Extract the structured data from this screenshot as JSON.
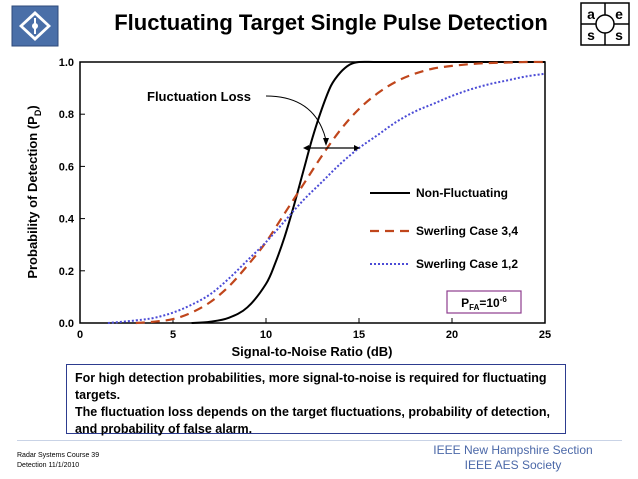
{
  "slide": {
    "title": "Fluctuating Target Single Pulse Detection",
    "footer_left": [
      "Radar Systems Course    39",
      "Detection  11/1/2010"
    ],
    "footer_right": [
      "IEEE New Hampshire Section",
      "IEEE AES Society"
    ],
    "callout": [
      "For high detection probabilities, more signal-to-noise is required for fluctuating targets.",
      "The fluctuation loss depends on the target fluctuations, probability of detection, and probability of false alarm."
    ],
    "logo_right_letters": [
      "a",
      "e",
      "s",
      "s"
    ]
  },
  "colors": {
    "non_fluctuating": "#000000",
    "swerling_34": "#c0461c",
    "swerling_12": "#4b4bd6",
    "callout_border": "#2d3c8f",
    "footer_text": "#4b68a8"
  },
  "chart_data": {
    "type": "line",
    "title": "Fluctuating Target Single Pulse Detection",
    "xlabel": "Signal-to-Noise Ratio (dB)",
    "ylabel": "Probability of Detection (P",
    "ylabel_sub": "D",
    "ylabel_close": ")",
    "xlim": [
      0,
      25
    ],
    "ylim": [
      0,
      1
    ],
    "xticks": [
      0,
      5,
      10,
      15,
      20,
      25
    ],
    "yticks": [
      "0.0",
      "0.2",
      "0.4",
      "0.6",
      "0.8",
      "1.0"
    ],
    "grid": false,
    "legend_position": "right",
    "series": [
      {
        "name": "Non-Fluctuating",
        "style": "solid",
        "x": [
          6,
          7,
          8,
          9,
          10,
          10.5,
          11,
          11.5,
          12,
          12.5,
          13,
          13.5,
          14,
          14.5,
          15,
          16,
          18,
          20,
          25
        ],
        "y": [
          0.0,
          0.005,
          0.02,
          0.06,
          0.15,
          0.23,
          0.33,
          0.45,
          0.58,
          0.71,
          0.82,
          0.91,
          0.96,
          0.99,
          1.0,
          1.0,
          1.0,
          1.0,
          1.0
        ]
      },
      {
        "name": "Swerling Case 3,4",
        "style": "dashed",
        "x": [
          3,
          4,
          5,
          6,
          7,
          8,
          9,
          10,
          11,
          12,
          13,
          14,
          15,
          16,
          17,
          18,
          19,
          20,
          21,
          22,
          23,
          24,
          25
        ],
        "y": [
          0.0,
          0.005,
          0.015,
          0.04,
          0.08,
          0.14,
          0.22,
          0.31,
          0.42,
          0.53,
          0.64,
          0.74,
          0.82,
          0.88,
          0.925,
          0.955,
          0.975,
          0.985,
          0.992,
          0.996,
          0.998,
          1.0,
          1.0
        ]
      },
      {
        "name": "Swerling Case 1,2",
        "style": "dotted",
        "x": [
          1.5,
          3,
          4,
          5,
          6,
          7,
          8,
          9,
          10,
          11,
          12,
          13,
          14,
          15,
          16,
          17,
          18,
          19,
          20,
          21,
          22,
          23,
          24,
          25
        ],
        "y": [
          0.0,
          0.01,
          0.02,
          0.04,
          0.07,
          0.11,
          0.17,
          0.24,
          0.31,
          0.39,
          0.47,
          0.54,
          0.61,
          0.67,
          0.72,
          0.77,
          0.81,
          0.84,
          0.87,
          0.895,
          0.915,
          0.93,
          0.945,
          0.955
        ]
      }
    ],
    "annotations": {
      "fluctuation_loss": "Fluctuation Loss",
      "pfa_main": "P",
      "pfa_sub": "FA",
      "pfa_eq": "=10",
      "pfa_exp": "-6"
    }
  }
}
